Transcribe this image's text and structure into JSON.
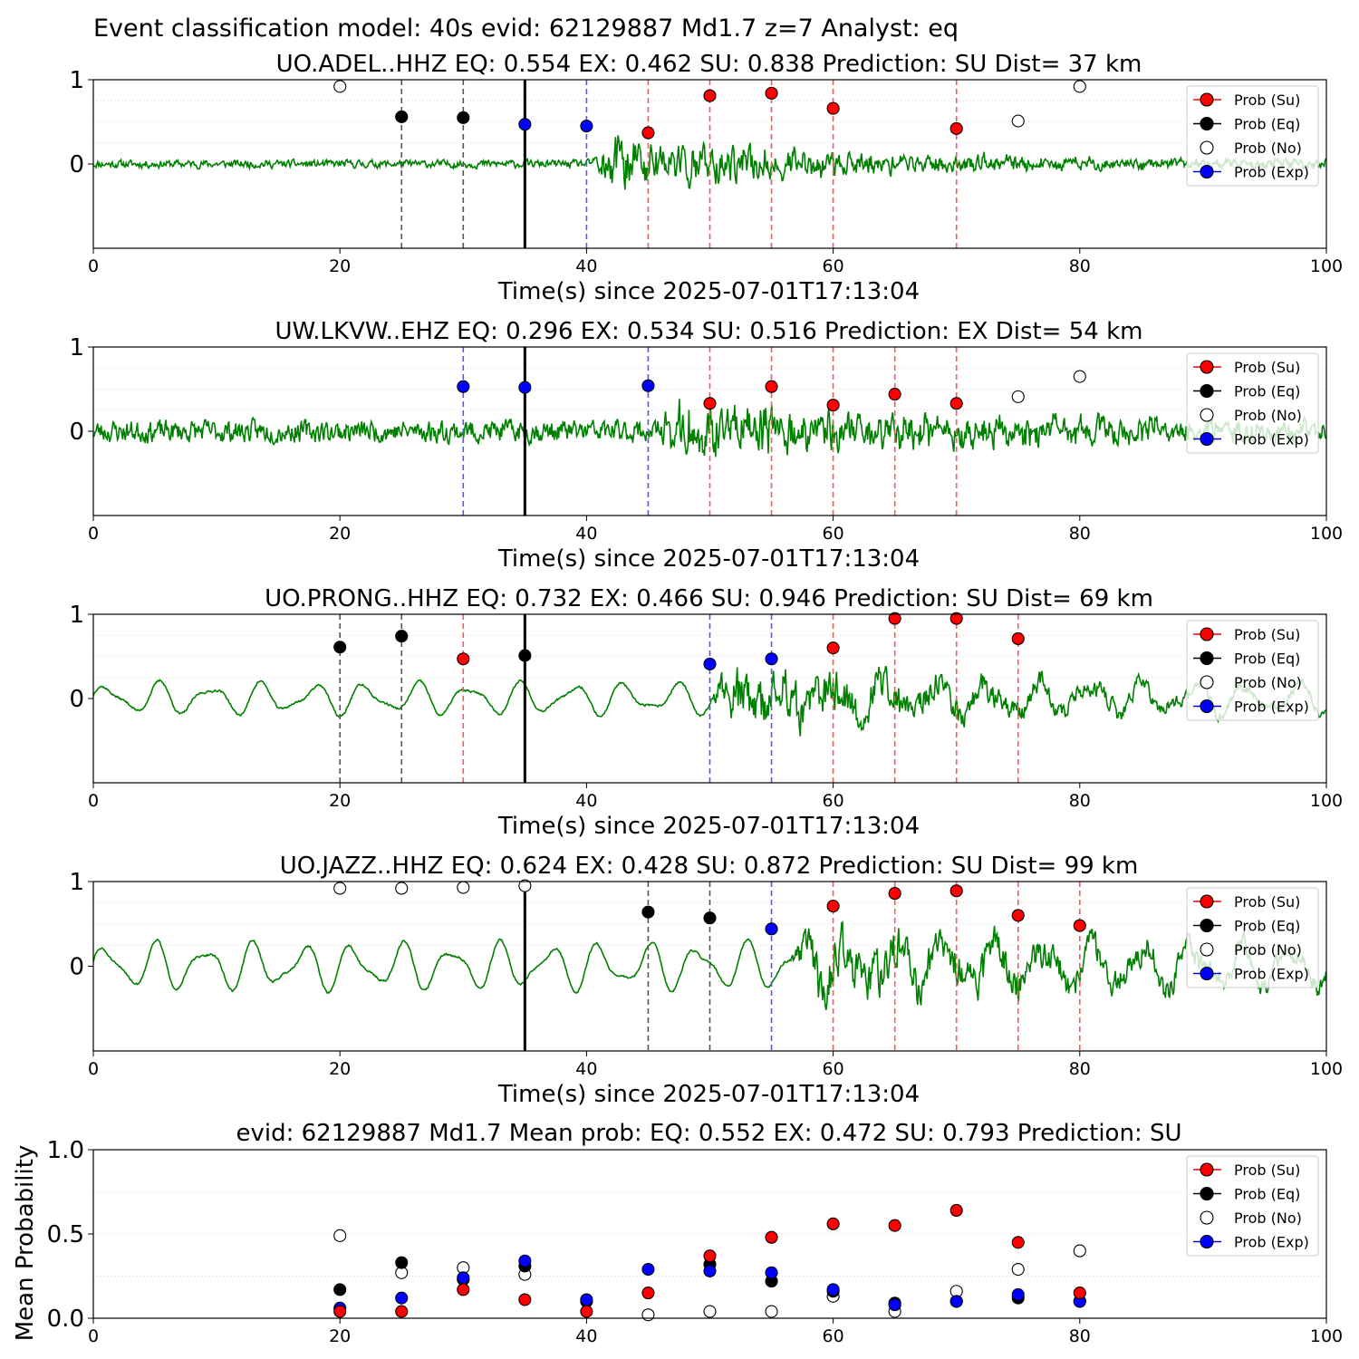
{
  "figure_title": "Event classification model: 40s evid: 62129887 Md1.7 z=7 Analyst: eq",
  "colors": {
    "waveform": "#008000",
    "su": "#ff0000",
    "eq": "#000000",
    "no": "#ffffff",
    "exp": "#0000ff",
    "su_line": "#ff5555",
    "exp_line": "#5555ff",
    "eq_line": "#555555",
    "pick": "#000000"
  },
  "legend_labels": [
    "Prob (Su)",
    "Prob (Eq)",
    "Prob (No)",
    "Prob (Exp)"
  ],
  "chart_data": [
    {
      "type": "scatter",
      "title": "UO.ADEL..HHZ   EQ: 0.554  EX: 0.462  SU: 0.838   Prediction: SU    Dist= 37 km",
      "xlabel": "Time(s) since 2025-07-01T17:13:04",
      "ylabel": "",
      "xlim": [
        0,
        100
      ],
      "ylim": [
        -1,
        1
      ],
      "xticks": [
        0,
        20,
        40,
        60,
        80,
        100
      ],
      "yticks": [
        0,
        1
      ],
      "ytick_labels": [
        "0",
        "1"
      ],
      "grid": "horizontal dotted",
      "legend": "top-right",
      "pick_time": 35,
      "waveform": {
        "type": "noise_burst",
        "amp": 0.07,
        "onset": 40.3,
        "burst_amp": 0.52,
        "decay": 22,
        "seed": 11
      },
      "vlines": [
        {
          "x": 25,
          "class": "eq"
        },
        {
          "x": 30,
          "class": "eq"
        },
        {
          "x": 40,
          "class": "exp"
        },
        {
          "x": 45,
          "class": "su"
        },
        {
          "x": 50,
          "class": "su"
        },
        {
          "x": 55,
          "class": "su"
        },
        {
          "x": 60,
          "class": "su"
        },
        {
          "x": 70,
          "class": "su"
        }
      ],
      "points": [
        {
          "x": 20,
          "y": 0.92,
          "class": "no"
        },
        {
          "x": 25,
          "y": 0.56,
          "class": "eq"
        },
        {
          "x": 30,
          "y": 0.55,
          "class": "eq"
        },
        {
          "x": 35,
          "y": 0.47,
          "class": "exp"
        },
        {
          "x": 40,
          "y": 0.45,
          "class": "exp"
        },
        {
          "x": 45,
          "y": 0.37,
          "class": "su"
        },
        {
          "x": 50,
          "y": 0.81,
          "class": "su"
        },
        {
          "x": 55,
          "y": 0.84,
          "class": "su"
        },
        {
          "x": 60,
          "y": 0.66,
          "class": "su"
        },
        {
          "x": 70,
          "y": 0.42,
          "class": "su"
        },
        {
          "x": 75,
          "y": 0.51,
          "class": "no"
        },
        {
          "x": 80,
          "y": 0.92,
          "class": "no"
        }
      ]
    },
    {
      "type": "scatter",
      "title": "UW.LKVW..EHZ   EQ: 0.296  EX: 0.534  SU: 0.516   Prediction: EX    Dist= 54 km",
      "xlabel": "Time(s) since 2025-07-01T17:13:04",
      "ylabel": "",
      "xlim": [
        0,
        100
      ],
      "ylim": [
        -1,
        1
      ],
      "xticks": [
        0,
        20,
        40,
        60,
        80,
        100
      ],
      "yticks": [
        0,
        1
      ],
      "ytick_labels": [
        "0",
        "1"
      ],
      "grid": "horizontal dotted",
      "legend": "top-right",
      "pick_time": 35,
      "waveform": {
        "type": "noise_burst",
        "amp": 0.2,
        "onset": 45.6,
        "burst_amp": 0.45,
        "decay": 30,
        "seed": 23
      },
      "vlines": [
        {
          "x": 30,
          "class": "exp"
        },
        {
          "x": 45,
          "class": "exp"
        },
        {
          "x": 50,
          "class": "su"
        },
        {
          "x": 55,
          "class": "su"
        },
        {
          "x": 60,
          "class": "su"
        },
        {
          "x": 65,
          "class": "su"
        },
        {
          "x": 70,
          "class": "su"
        }
      ],
      "points": [
        {
          "x": 30,
          "y": 0.53,
          "class": "exp"
        },
        {
          "x": 35,
          "y": 0.52,
          "class": "exp"
        },
        {
          "x": 45,
          "y": 0.54,
          "class": "exp"
        },
        {
          "x": 50,
          "y": 0.33,
          "class": "su"
        },
        {
          "x": 55,
          "y": 0.53,
          "class": "su"
        },
        {
          "x": 60,
          "y": 0.31,
          "class": "su"
        },
        {
          "x": 65,
          "y": 0.44,
          "class": "su"
        },
        {
          "x": 70,
          "y": 0.33,
          "class": "su"
        },
        {
          "x": 75,
          "y": 0.41,
          "class": "no"
        },
        {
          "x": 80,
          "y": 0.65,
          "class": "no"
        }
      ]
    },
    {
      "type": "scatter",
      "title": "UO.PRONG..HHZ   EQ: 0.732  EX: 0.466  SU: 0.946   Prediction: SU    Dist= 69 km",
      "xlabel": "Time(s) since 2025-07-01T17:13:04",
      "ylabel": "",
      "xlim": [
        0,
        100
      ],
      "ylim": [
        -1,
        1
      ],
      "xticks": [
        0,
        20,
        40,
        60,
        80,
        100
      ],
      "yticks": [
        0,
        1
      ],
      "ytick_labels": [
        "0",
        "1"
      ],
      "grid": "horizontal dotted",
      "legend": "top-right",
      "pick_time": 35,
      "waveform": {
        "type": "swell_burst",
        "amp": 0.15,
        "period": 4.2,
        "onset": 50,
        "burst_amp": 0.55,
        "decay": 25,
        "seed": 37
      },
      "vlines": [
        {
          "x": 20,
          "class": "eq"
        },
        {
          "x": 25,
          "class": "eq"
        },
        {
          "x": 30,
          "class": "su"
        },
        {
          "x": 50,
          "class": "exp"
        },
        {
          "x": 55,
          "class": "exp"
        },
        {
          "x": 60,
          "class": "su"
        },
        {
          "x": 65,
          "class": "su"
        },
        {
          "x": 70,
          "class": "su"
        },
        {
          "x": 75,
          "class": "su"
        }
      ],
      "points": [
        {
          "x": 20,
          "y": 0.61,
          "class": "eq"
        },
        {
          "x": 25,
          "y": 0.74,
          "class": "eq"
        },
        {
          "x": 30,
          "y": 0.47,
          "class": "su"
        },
        {
          "x": 35,
          "y": 0.51,
          "class": "eq"
        },
        {
          "x": 50,
          "y": 0.41,
          "class": "exp"
        },
        {
          "x": 55,
          "y": 0.47,
          "class": "exp"
        },
        {
          "x": 60,
          "y": 0.6,
          "class": "su"
        },
        {
          "x": 65,
          "y": 0.95,
          "class": "su"
        },
        {
          "x": 70,
          "y": 0.95,
          "class": "su"
        },
        {
          "x": 75,
          "y": 0.71,
          "class": "su"
        }
      ]
    },
    {
      "type": "scatter",
      "title": "UO.JAZZ..HHZ   EQ: 0.624  EX: 0.428  SU: 0.872   Prediction: SU    Dist= 99 km",
      "xlabel": "Time(s) since 2025-07-01T17:13:04",
      "ylabel": "",
      "xlim": [
        0,
        100
      ],
      "ylim": [
        -1,
        1
      ],
      "xticks": [
        0,
        20,
        40,
        60,
        80,
        100
      ],
      "yticks": [
        0,
        1
      ],
      "ytick_labels": [
        "0",
        "1"
      ],
      "grid": "horizontal dotted",
      "legend": "top-right",
      "pick_time": 35,
      "waveform": {
        "type": "swell_burst",
        "amp": 0.22,
        "period": 4.0,
        "onset": 56.5,
        "burst_amp": 0.5,
        "decay": 35,
        "seed": 51
      },
      "vlines": [
        {
          "x": 45,
          "class": "eq"
        },
        {
          "x": 50,
          "class": "eq"
        },
        {
          "x": 55,
          "class": "exp"
        },
        {
          "x": 60,
          "class": "su"
        },
        {
          "x": 65,
          "class": "su"
        },
        {
          "x": 70,
          "class": "su"
        },
        {
          "x": 75,
          "class": "su"
        },
        {
          "x": 80,
          "class": "su"
        }
      ],
      "points": [
        {
          "x": 20,
          "y": 0.92,
          "class": "no"
        },
        {
          "x": 25,
          "y": 0.92,
          "class": "no"
        },
        {
          "x": 30,
          "y": 0.93,
          "class": "no"
        },
        {
          "x": 35,
          "y": 0.95,
          "class": "no"
        },
        {
          "x": 45,
          "y": 0.64,
          "class": "eq"
        },
        {
          "x": 50,
          "y": 0.57,
          "class": "eq"
        },
        {
          "x": 55,
          "y": 0.44,
          "class": "exp"
        },
        {
          "x": 60,
          "y": 0.71,
          "class": "su"
        },
        {
          "x": 65,
          "y": 0.86,
          "class": "su"
        },
        {
          "x": 70,
          "y": 0.89,
          "class": "su"
        },
        {
          "x": 75,
          "y": 0.6,
          "class": "su"
        },
        {
          "x": 80,
          "y": 0.48,
          "class": "su"
        }
      ]
    },
    {
      "type": "scatter",
      "title": "evid: 62129887  Md1.7   Mean prob:   EQ: 0.552  EX: 0.472  SU: 0.793   Prediction: SU",
      "xlabel": "",
      "ylabel": "Mean Probability",
      "xlim": [
        0,
        100
      ],
      "ylim": [
        0,
        1
      ],
      "xticks": [
        0,
        20,
        40,
        60,
        80,
        100
      ],
      "yticks": [
        0,
        0.5,
        1
      ],
      "ytick_labels": [
        "0.0",
        "0.5",
        "1.0"
      ],
      "grid": "horizontal dotted",
      "legend": "top-right",
      "series": [
        {
          "class": "no",
          "x": [
            20,
            25,
            30,
            35,
            45,
            50,
            55,
            60,
            65,
            70,
            75,
            80
          ],
          "y": [
            0.49,
            0.27,
            0.3,
            0.26,
            0.02,
            0.04,
            0.04,
            0.13,
            0.04,
            0.16,
            0.29,
            0.4
          ]
        },
        {
          "class": "eq",
          "x": [
            20,
            25,
            30,
            35,
            40,
            50,
            55,
            60,
            65,
            70,
            75,
            80
          ],
          "y": [
            0.17,
            0.33,
            0.23,
            0.31,
            0.1,
            0.32,
            0.22,
            0.16,
            0.09,
            0.1,
            0.12,
            0.1
          ]
        },
        {
          "class": "exp",
          "x": [
            20,
            25,
            30,
            35,
            40,
            45,
            50,
            55,
            60,
            65,
            70,
            75,
            80
          ],
          "y": [
            0.06,
            0.12,
            0.24,
            0.34,
            0.11,
            0.29,
            0.28,
            0.27,
            0.17,
            0.08,
            0.1,
            0.14,
            0.1
          ]
        },
        {
          "class": "su",
          "x": [
            20,
            25,
            30,
            35,
            40,
            45,
            50,
            55,
            60,
            65,
            70,
            75,
            80
          ],
          "y": [
            0.04,
            0.04,
            0.17,
            0.11,
            0.04,
            0.15,
            0.37,
            0.48,
            0.56,
            0.55,
            0.64,
            0.45,
            0.15
          ]
        }
      ]
    }
  ]
}
